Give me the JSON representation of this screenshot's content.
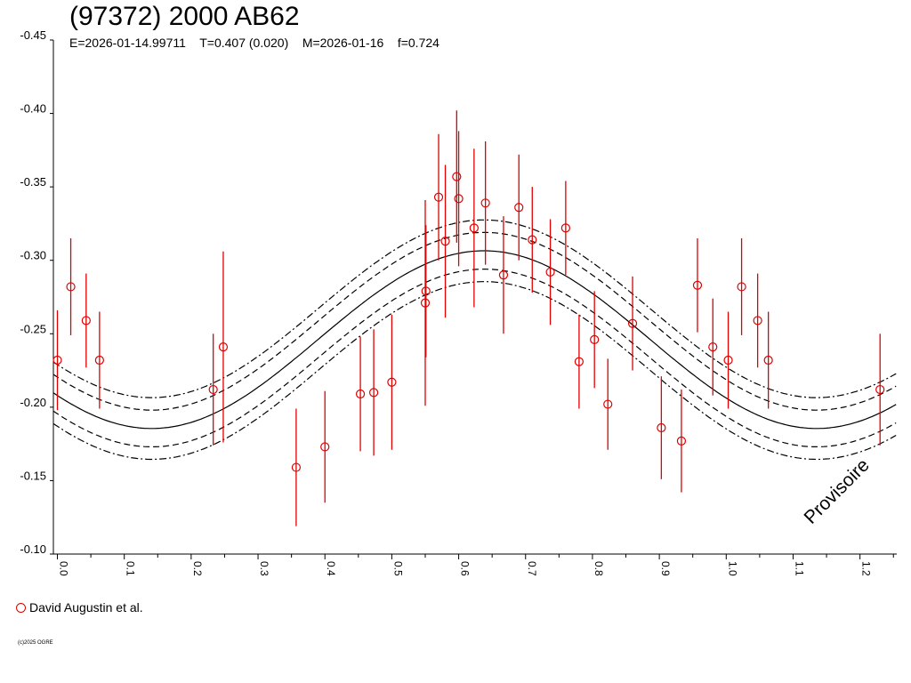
{
  "chart_data": {
    "type": "scatter",
    "title": "(97372) 2000 AB62",
    "params": {
      "epoch": "E=2026-01-14.99711",
      "period": "T=0.407 (0.020)",
      "date": "M=2026-01-16",
      "f": "f=0.724"
    },
    "xlim": [
      -0.006,
      1.255
    ],
    "ylim": [
      -0.45,
      -0.1
    ],
    "y_inverted": true,
    "x_ticks": [
      "0.0",
      "0.1",
      "0.2",
      "0.3",
      "0.4",
      "0.5",
      "0.6",
      "0.7",
      "0.8",
      "0.9",
      "1.0",
      "1.1",
      "1.2"
    ],
    "x_tick_values": [
      0.0,
      0.1,
      0.2,
      0.3,
      0.4,
      0.5,
      0.6,
      0.7,
      0.8,
      0.9,
      1.0,
      1.1,
      1.2
    ],
    "y_ticks": [
      "-0.45",
      "-0.40",
      "-0.35",
      "-0.30",
      "-0.25",
      "-0.20",
      "-0.15",
      "-0.10"
    ],
    "y_tick_values": [
      -0.45,
      -0.4,
      -0.35,
      -0.3,
      -0.25,
      -0.2,
      -0.15,
      -0.1
    ],
    "model": {
      "mean": -0.246,
      "amplitude": 0.0605,
      "peak_phase": 0.638,
      "period_phase": 0.994,
      "inner_band": 0.0125,
      "outer_band": 0.021
    },
    "series": [
      {
        "name": "David Augustin et al.",
        "color": "#e00000",
        "points": [
          {
            "x": 0.0,
            "y": -0.232,
            "err": 0.034
          },
          {
            "x": 0.02,
            "y": -0.282,
            "err": 0.033
          },
          {
            "x": 0.043,
            "y": -0.259,
            "err": 0.032
          },
          {
            "x": 0.063,
            "y": -0.232,
            "err": 0.033
          },
          {
            "x": 0.233,
            "y": -0.212,
            "err": 0.038
          },
          {
            "x": 0.248,
            "y": -0.241,
            "err": 0.065
          },
          {
            "x": 0.357,
            "y": -0.159,
            "err": 0.04
          },
          {
            "x": 0.4,
            "y": -0.173,
            "err": 0.038
          },
          {
            "x": 0.453,
            "y": -0.209,
            "err": 0.039
          },
          {
            "x": 0.473,
            "y": -0.21,
            "err": 0.043
          },
          {
            "x": 0.5,
            "y": -0.217,
            "err": 0.046
          },
          {
            "x": 0.55,
            "y": -0.271,
            "err": 0.07
          },
          {
            "x": 0.551,
            "y": -0.279,
            "err": 0.045
          },
          {
            "x": 0.57,
            "y": -0.343,
            "err": 0.043
          },
          {
            "x": 0.58,
            "y": -0.313,
            "err": 0.052
          },
          {
            "x": 0.597,
            "y": -0.357,
            "err": 0.045
          },
          {
            "x": 0.6,
            "y": -0.342,
            "err": 0.046
          },
          {
            "x": 0.623,
            "y": -0.322,
            "err": 0.054
          },
          {
            "x": 0.64,
            "y": -0.339,
            "err": 0.042
          },
          {
            "x": 0.667,
            "y": -0.29,
            "err": 0.04
          },
          {
            "x": 0.69,
            "y": -0.336,
            "err": 0.036
          },
          {
            "x": 0.71,
            "y": -0.314,
            "err": 0.036
          },
          {
            "x": 0.737,
            "y": -0.292,
            "err": 0.036
          },
          {
            "x": 0.76,
            "y": -0.322,
            "err": 0.032
          },
          {
            "x": 0.78,
            "y": -0.231,
            "err": 0.032
          },
          {
            "x": 0.803,
            "y": -0.246,
            "err": 0.033
          },
          {
            "x": 0.823,
            "y": -0.202,
            "err": 0.031
          },
          {
            "x": 0.86,
            "y": -0.257,
            "err": 0.032
          },
          {
            "x": 0.903,
            "y": -0.186,
            "err": 0.035
          },
          {
            "x": 0.933,
            "y": -0.177,
            "err": 0.035
          },
          {
            "x": 0.957,
            "y": -0.283,
            "err": 0.032
          },
          {
            "x": 0.98,
            "y": -0.241,
            "err": 0.033
          },
          {
            "x": 1.003,
            "y": -0.232,
            "err": 0.033
          },
          {
            "x": 1.023,
            "y": -0.282,
            "err": 0.033
          },
          {
            "x": 1.047,
            "y": -0.259,
            "err": 0.032
          },
          {
            "x": 1.063,
            "y": -0.232,
            "err": 0.033
          },
          {
            "x": 1.23,
            "y": -0.212,
            "err": 0.038
          }
        ]
      }
    ]
  },
  "watermark": "Provisoire",
  "copyright": "(c)2025 OGRE"
}
